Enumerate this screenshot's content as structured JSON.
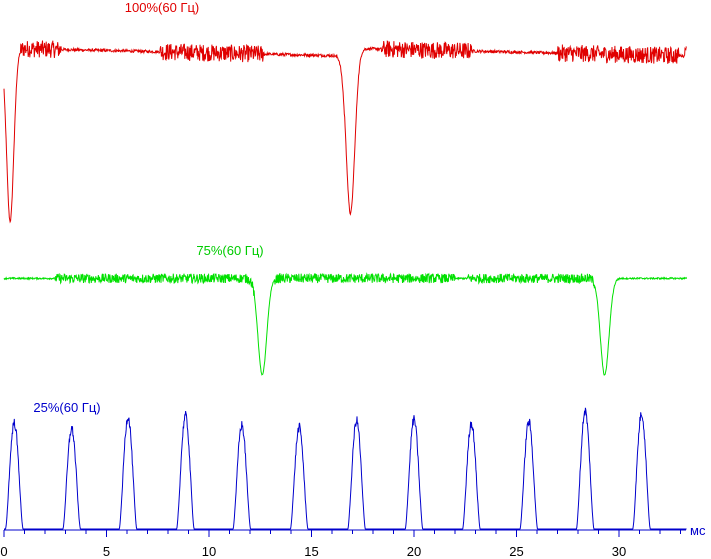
{
  "chart_data": {
    "type": "line",
    "xlabel": "мс",
    "xlim": [
      0,
      33.3
    ],
    "x_ticks": [
      "0",
      "5",
      "10",
      "15",
      "20",
      "25",
      "30"
    ],
    "x_tick_values": [
      0,
      5,
      10,
      15,
      20,
      25,
      30
    ],
    "grid": false,
    "legend": "none",
    "series": [
      {
        "name": "100%(60 Гц)",
        "color": "#e00000",
        "baseline_level": 0.9,
        "dips": [
          {
            "x": 0.3,
            "depth": 0.0,
            "width": 0.25
          },
          {
            "x": 16.9,
            "depth": 0.04,
            "width": 0.3
          }
        ],
        "noisy_ranges": [
          [
            0.8,
            2.8
          ],
          [
            7.6,
            12.7
          ],
          [
            18.4,
            22.8
          ],
          [
            27.0,
            32.9
          ]
        ]
      },
      {
        "name": "75%(60 Гц)",
        "color": "#00e000",
        "baseline_level": 0.92,
        "dips": [
          {
            "x": 12.6,
            "depth": 0.0,
            "width": 0.3
          },
          {
            "x": 29.3,
            "depth": 0.0,
            "width": 0.3
          }
        ],
        "noisy_ranges": [
          [
            2.5,
            12.2
          ],
          [
            13.2,
            22.0
          ],
          [
            22.6,
            28.8
          ]
        ]
      },
      {
        "name": "25%(60 Гц)",
        "color": "#0000cc",
        "baseline_level": 0.0,
        "pulse_period": 2.78,
        "pulse_width": 0.85,
        "pulse_centers": [
          0.5,
          3.3,
          6.05,
          8.85,
          11.6,
          14.4,
          17.2,
          20.0,
          22.8,
          25.6,
          28.35,
          31.1
        ],
        "pulse_heights": [
          0.9,
          0.85,
          0.95,
          0.96,
          0.88,
          0.86,
          0.92,
          0.93,
          0.9,
          0.91,
          1.0,
          0.98
        ]
      }
    ]
  }
}
